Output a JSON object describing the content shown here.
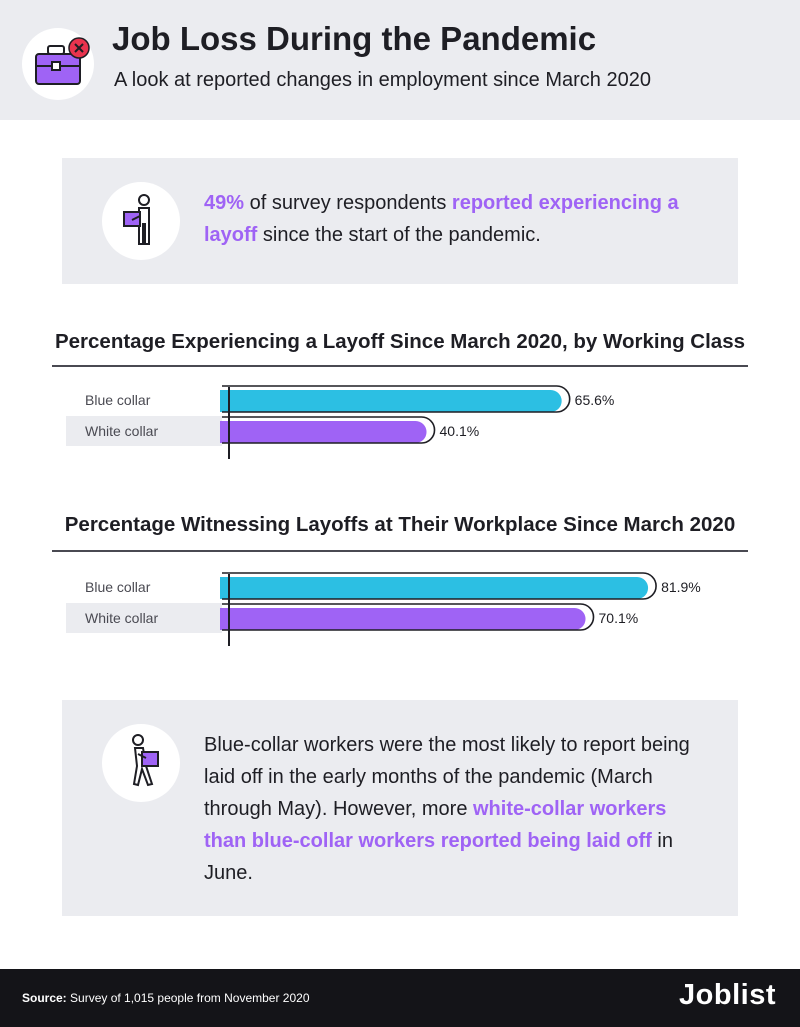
{
  "header": {
    "title": "Job Loss During the Pandemic",
    "subtitle": "A look at reported changes in employment since March 2020",
    "icon": "briefcase-x-icon"
  },
  "callout1": {
    "icon": "worker-with-box-icon",
    "highlight_1": "49%",
    "text_1": " of survey respondents ",
    "highlight_2": "reported experiencing a layoff",
    "text_2": " since the start of the pandemic."
  },
  "callout2": {
    "icon": "worker-walking-with-box-icon",
    "text_1": "Blue-collar workers were the most likely to report being laid off in the early months of the pandemic (March through May). However, more ",
    "highlight_1": "white-collar workers than blue-collar workers reported being laid off",
    "text_2": " in June."
  },
  "chart_data": [
    {
      "type": "bar",
      "orientation": "horizontal",
      "title": "Percentage Experiencing a Layoff Since March 2020, by Working Class",
      "categories": [
        "Blue collar",
        "White collar"
      ],
      "values": [
        65.6,
        40.1
      ],
      "value_labels": [
        "65.6%",
        "40.1%"
      ],
      "colors": [
        "#2cbfe3",
        "#9f63f5"
      ],
      "xlim": [
        0,
        100
      ]
    },
    {
      "type": "bar",
      "orientation": "horizontal",
      "title": "Percentage Witnessing Layoffs at Their Workplace Since March 2020",
      "categories": [
        "Blue collar",
        "White collar"
      ],
      "values": [
        81.9,
        70.1
      ],
      "value_labels": [
        "81.9%",
        "70.1%"
      ],
      "colors": [
        "#2cbfe3",
        "#9f63f5"
      ],
      "xlim": [
        0,
        100
      ]
    }
  ],
  "footer": {
    "source_label": "Source:",
    "source_text": " Survey of 1,015 people from November 2020",
    "brand": "Joblist"
  }
}
